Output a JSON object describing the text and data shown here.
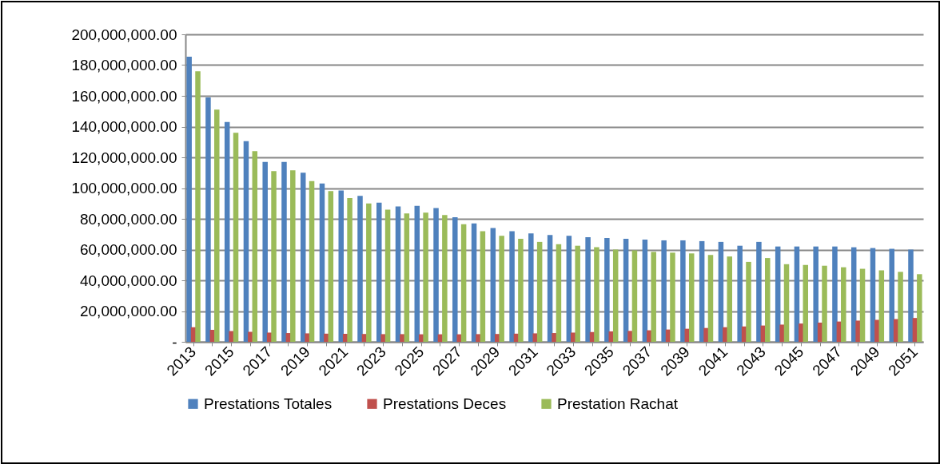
{
  "chart_data": {
    "type": "bar",
    "categories": [
      "2013",
      null,
      "2015",
      null,
      "2017",
      null,
      "2019",
      null,
      "2021",
      null,
      "2023",
      null,
      "2025",
      null,
      "2027",
      null,
      "2029",
      null,
      "2031",
      null,
      "2033",
      null,
      "2035",
      null,
      "2037",
      null,
      "2039",
      null,
      "2041",
      null,
      "2043",
      null,
      "2045",
      null,
      "2047",
      null,
      "2049",
      null,
      "2051"
    ],
    "series": [
      {
        "name": "Prestations Totales",
        "color": "#4f81bd",
        "values": [
          185500000,
          159000000,
          143000000,
          130500000,
          117000000,
          117000000,
          110000000,
          103000000,
          98500000,
          95000000,
          90500000,
          88000000,
          88500000,
          87000000,
          81000000,
          77000000,
          74000000,
          72000000,
          70500000,
          69500000,
          69000000,
          68000000,
          67500000,
          67000000,
          66500000,
          66000000,
          66000000,
          65500000,
          65000000,
          62500000,
          65000000,
          62000000,
          62000000,
          62000000,
          62000000,
          61500000,
          61000000,
          60500000,
          60000000
        ]
      },
      {
        "name": "Prestations Deces",
        "color": "#c0504d",
        "values": [
          9500000,
          7800000,
          7000000,
          6500000,
          6000000,
          5700000,
          5500000,
          5300000,
          5200000,
          5100000,
          5000000,
          5000000,
          4900000,
          4900000,
          4900000,
          5000000,
          5100000,
          5300000,
          5500000,
          5700000,
          6000000,
          6400000,
          6800000,
          7100000,
          7500000,
          8000000,
          8500000,
          9000000,
          9500000,
          10000000,
          10600000,
          11200000,
          11900000,
          12500000,
          13200000,
          13800000,
          14300000,
          14800000,
          15500000
        ]
      },
      {
        "name": "Prestation Rachat",
        "color": "#9bbb59",
        "values": [
          176000000,
          151000000,
          136000000,
          124000000,
          111000000,
          111500000,
          104500000,
          98000000,
          93500000,
          90000000,
          86000000,
          83500000,
          84000000,
          82500000,
          76500000,
          72000000,
          69000000,
          67000000,
          65000000,
          63500000,
          62500000,
          61500000,
          60000000,
          59500000,
          58500000,
          58000000,
          57500000,
          56500000,
          55500000,
          52000000,
          54500000,
          50500000,
          50000000,
          49500000,
          48500000,
          47500000,
          46500000,
          45500000,
          44000000
        ]
      }
    ],
    "ylim": [
      0,
      200000000
    ],
    "yticks": [
      {
        "value": 0,
        "label": "-"
      },
      {
        "value": 20000000,
        "label": "20,000,000.00"
      },
      {
        "value": 40000000,
        "label": "40,000,000.00"
      },
      {
        "value": 60000000,
        "label": "60,000,000.00"
      },
      {
        "value": 80000000,
        "label": "80,000,000.00"
      },
      {
        "value": 100000000,
        "label": "100,000,000.00"
      },
      {
        "value": 120000000,
        "label": "120,000,000.00"
      },
      {
        "value": 140000000,
        "label": "140,000,000.00"
      },
      {
        "value": 160000000,
        "label": "160,000,000.00"
      },
      {
        "value": 180000000,
        "label": "180,000,000.00"
      },
      {
        "value": 200000000,
        "label": "200,000,000.00"
      }
    ],
    "grid": "y",
    "legend": "bottom"
  }
}
